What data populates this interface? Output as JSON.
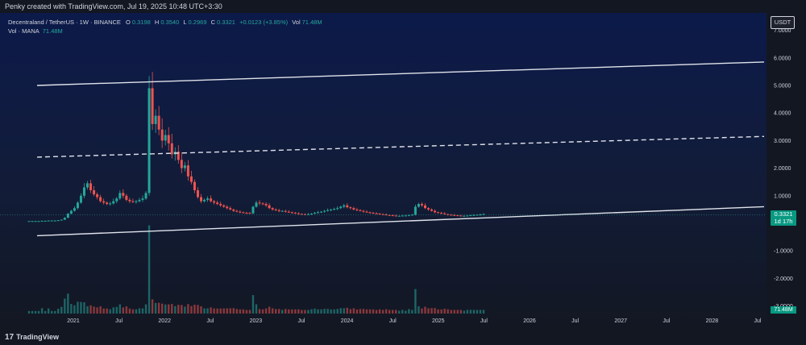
{
  "header": {
    "attribution": "Penky created with TradingView.com, Jul 19, 2025 10:48 UTC+3:30"
  },
  "legend": {
    "symbol": "Decentraland / TetherUS · 1W · BINANCE",
    "open_key": "O",
    "open": "0.3198",
    "high_key": "H",
    "high": "0.3540",
    "low_key": "L",
    "low": "0.2969",
    "close_key": "C",
    "close": "0.3321",
    "change": "+0.0123 (+3.85%)",
    "vol_key": "Vol",
    "vol": "71.48M",
    "vol_indicator_label": "Vol · MANA",
    "vol_indicator_value": "71.48M"
  },
  "currency_button": "USDT",
  "price_badge": {
    "price": "0.3321",
    "countdown": "1d 17h"
  },
  "volume_badge": "71.48M",
  "branding": {
    "logo_text": "TradingView",
    "logo_mark": "17"
  },
  "colors": {
    "up": "#26a69a",
    "down": "#ef5350",
    "background_top": "#0c1a4a",
    "background_bottom": "#131722",
    "channel": "#e0e3eb",
    "text": "#d1d4dc"
  },
  "chart_data": {
    "type": "candlestick",
    "timeframe": "1W",
    "symbol": "MANAUSDT",
    "price_axis_labels": [
      "7.0000",
      "6.0000",
      "5.0000",
      "4.0000",
      "3.0000",
      "2.0000",
      "1.0000",
      "-1.0000",
      "-2.0000",
      "-3.0000"
    ],
    "time_axis_labels": [
      "2021",
      "Jul",
      "2022",
      "Jul",
      "2023",
      "Jul",
      "2024",
      "Jul",
      "2025",
      "Jul",
      "2026",
      "Jul",
      "2027",
      "Jul",
      "2028",
      "Jul"
    ],
    "last_price": 0.3321,
    "price_path_weekly": [
      0.08,
      0.08,
      0.08,
      0.08,
      0.09,
      0.09,
      0.1,
      0.1,
      0.1,
      0.11,
      0.13,
      0.2,
      0.35,
      0.45,
      0.55,
      0.75,
      1.0,
      1.3,
      1.45,
      1.2,
      1.05,
      0.95,
      0.8,
      0.75,
      0.7,
      0.72,
      0.8,
      0.9,
      1.1,
      1.0,
      0.85,
      0.8,
      0.78,
      0.8,
      0.85,
      0.9,
      1.1,
      4.9,
      3.6,
      3.9,
      3.4,
      3.0,
      3.2,
      2.9,
      2.5,
      2.6,
      2.3,
      2.0,
      2.1,
      1.7,
      1.5,
      1.2,
      0.95,
      0.8,
      0.85,
      0.9,
      0.8,
      0.75,
      0.7,
      0.65,
      0.6,
      0.55,
      0.5,
      0.45,
      0.42,
      0.4,
      0.38,
      0.37,
      0.36,
      0.6,
      0.75,
      0.72,
      0.7,
      0.65,
      0.55,
      0.5,
      0.47,
      0.44,
      0.45,
      0.42,
      0.4,
      0.38,
      0.36,
      0.34,
      0.33,
      0.32,
      0.33,
      0.35,
      0.38,
      0.4,
      0.42,
      0.45,
      0.48,
      0.5,
      0.52,
      0.55,
      0.6,
      0.65,
      0.58,
      0.55,
      0.5,
      0.48,
      0.45,
      0.42,
      0.4,
      0.38,
      0.36,
      0.35,
      0.33,
      0.32,
      0.3,
      0.29,
      0.28,
      0.27,
      0.27,
      0.28,
      0.28,
      0.3,
      0.31,
      0.6,
      0.7,
      0.65,
      0.55,
      0.5,
      0.45,
      0.4,
      0.38,
      0.36,
      0.33,
      0.31,
      0.3,
      0.29,
      0.28,
      0.27,
      0.27,
      0.28,
      0.29,
      0.3,
      0.31,
      0.32,
      0.33
    ],
    "channel_lines": [
      {
        "name": "upper",
        "style": "solid",
        "y_start": 5.0,
        "y_end": 5.85
      },
      {
        "name": "middle",
        "style": "dashed",
        "y_start": 2.4,
        "y_end": 3.15
      },
      {
        "name": "lower",
        "style": "solid",
        "y_start": -0.45,
        "y_end": 0.6
      }
    ]
  }
}
